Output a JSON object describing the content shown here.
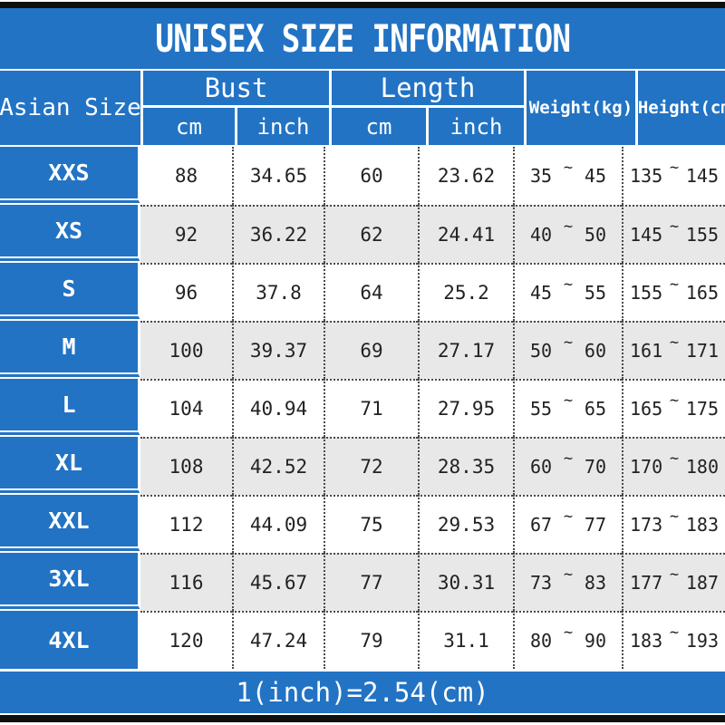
{
  "title": "UNISEX SIZE INFORMATION",
  "footer_note": "1(inch)=2.54(cm)",
  "tilde": "~",
  "header": {
    "size": "Asian Size",
    "bust": "Bust",
    "length": "Length",
    "weight": "Weight(kg)",
    "height": "Height(cm)",
    "cm": "cm",
    "inch": "inch"
  },
  "rows": [
    {
      "size": "XXS",
      "bust_cm": "88",
      "bust_inch": "34.65",
      "length_cm": "60",
      "length_inch": "23.62",
      "weight_min": "35",
      "weight_max": "45",
      "height_min": "135",
      "height_max": "145"
    },
    {
      "size": "XS",
      "bust_cm": "92",
      "bust_inch": "36.22",
      "length_cm": "62",
      "length_inch": "24.41",
      "weight_min": "40",
      "weight_max": "50",
      "height_min": "145",
      "height_max": "155"
    },
    {
      "size": "S",
      "bust_cm": "96",
      "bust_inch": "37.8",
      "length_cm": "64",
      "length_inch": "25.2",
      "weight_min": "45",
      "weight_max": "55",
      "height_min": "155",
      "height_max": "165"
    },
    {
      "size": "M",
      "bust_cm": "100",
      "bust_inch": "39.37",
      "length_cm": "69",
      "length_inch": "27.17",
      "weight_min": "50",
      "weight_max": "60",
      "height_min": "161",
      "height_max": "171"
    },
    {
      "size": "L",
      "bust_cm": "104",
      "bust_inch": "40.94",
      "length_cm": "71",
      "length_inch": "27.95",
      "weight_min": "55",
      "weight_max": "65",
      "height_min": "165",
      "height_max": "175"
    },
    {
      "size": "XL",
      "bust_cm": "108",
      "bust_inch": "42.52",
      "length_cm": "72",
      "length_inch": "28.35",
      "weight_min": "60",
      "weight_max": "70",
      "height_min": "170",
      "height_max": "180"
    },
    {
      "size": "XXL",
      "bust_cm": "112",
      "bust_inch": "44.09",
      "length_cm": "75",
      "length_inch": "29.53",
      "weight_min": "67",
      "weight_max": "77",
      "height_min": "173",
      "height_max": "183"
    },
    {
      "size": "3XL",
      "bust_cm": "116",
      "bust_inch": "45.67",
      "length_cm": "77",
      "length_inch": "30.31",
      "weight_min": "73",
      "weight_max": "83",
      "height_min": "177",
      "height_max": "187"
    },
    {
      "size": "4XL",
      "bust_cm": "120",
      "bust_inch": "47.24",
      "length_cm": "79",
      "length_inch": "31.1",
      "weight_min": "80",
      "weight_max": "90",
      "height_min": "183",
      "height_max": "193"
    }
  ],
  "chart_data": {
    "type": "table",
    "title": "UNISEX SIZE INFORMATION",
    "columns": [
      "Asian Size",
      "Bust cm",
      "Bust inch",
      "Length cm",
      "Length inch",
      "Weight(kg)",
      "Height(cm)"
    ],
    "rows": [
      [
        "XXS",
        "88",
        "34.65",
        "60",
        "23.62",
        "35~45",
        "135~145"
      ],
      [
        "XS",
        "92",
        "36.22",
        "62",
        "24.41",
        "40~50",
        "145~155"
      ],
      [
        "S",
        "96",
        "37.8",
        "64",
        "25.2",
        "45~55",
        "155~165"
      ],
      [
        "M",
        "100",
        "39.37",
        "69",
        "27.17",
        "50~60",
        "161~171"
      ],
      [
        "L",
        "104",
        "40.94",
        "71",
        "27.95",
        "55~65",
        "165~175"
      ],
      [
        "XL",
        "108",
        "42.52",
        "72",
        "28.35",
        "60~70",
        "170~180"
      ],
      [
        "XXL",
        "112",
        "44.09",
        "75",
        "29.53",
        "67~77",
        "173~183"
      ],
      [
        "3XL",
        "116",
        "45.67",
        "77",
        "30.31",
        "73~83",
        "177~187"
      ],
      [
        "4XL",
        "120",
        "47.24",
        "79",
        "31.1",
        "80~90",
        "183~193"
      ]
    ],
    "footnote": "1(inch)=2.54(cm)"
  },
  "colors": {
    "blue": "#2273c4",
    "alt_row": "#e8e8e8",
    "bar": "#101010",
    "dot": "#4a4a4a",
    "text": "#222222"
  }
}
